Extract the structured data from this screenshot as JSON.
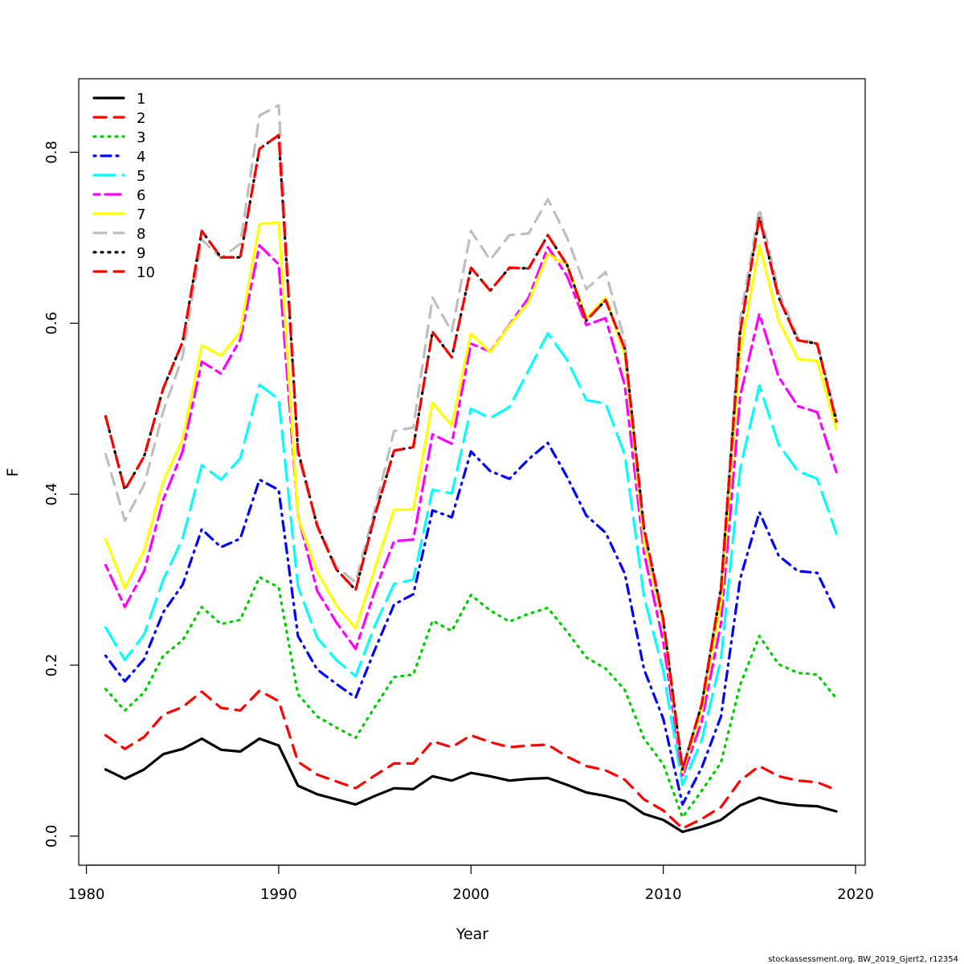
{
  "chart_data": {
    "type": "line",
    "xlabel": "Year",
    "ylabel": "F",
    "xlim": [
      1979.6,
      2020.5
    ],
    "ylim": [
      -0.034,
      0.886
    ],
    "xticks": [
      1980,
      1990,
      2000,
      2010,
      2020
    ],
    "yticks": [
      0.0,
      0.2,
      0.4,
      0.6,
      0.8
    ],
    "xtick_labels": [
      "1980",
      "1990",
      "2000",
      "2010",
      "2020"
    ],
    "ytick_labels": [
      "0.0",
      "0.2",
      "0.4",
      "0.6",
      "0.8"
    ],
    "grid": false,
    "legend_position": "top-left",
    "x": [
      1981,
      1982,
      1983,
      1984,
      1985,
      1986,
      1987,
      1988,
      1989,
      1990,
      1991,
      1992,
      1993,
      1994,
      1995,
      1996,
      1997,
      1998,
      1999,
      2000,
      2001,
      2002,
      2003,
      2004,
      2005,
      2006,
      2007,
      2008,
      2009,
      2010,
      2011,
      2012,
      2013,
      2014,
      2015,
      2016,
      2017,
      2018,
      2019
    ],
    "series": [
      {
        "name": "1",
        "color": "#000000",
        "dash": "solid",
        "values": [
          0.078,
          0.067,
          0.078,
          0.096,
          0.102,
          0.114,
          0.101,
          0.099,
          0.114,
          0.106,
          0.059,
          0.049,
          0.043,
          0.037,
          0.047,
          0.056,
          0.055,
          0.07,
          0.065,
          0.074,
          0.07,
          0.065,
          0.067,
          0.068,
          0.06,
          0.051,
          0.047,
          0.041,
          0.026,
          0.019,
          0.005,
          0.011,
          0.019,
          0.036,
          0.045,
          0.039,
          0.036,
          0.035,
          0.029
        ]
      },
      {
        "name": "2",
        "color": "#ff0000",
        "dash": "dashed",
        "values": [
          0.118,
          0.102,
          0.116,
          0.142,
          0.151,
          0.169,
          0.15,
          0.147,
          0.17,
          0.158,
          0.087,
          0.072,
          0.064,
          0.056,
          0.071,
          0.085,
          0.085,
          0.111,
          0.104,
          0.118,
          0.11,
          0.104,
          0.106,
          0.107,
          0.093,
          0.082,
          0.077,
          0.066,
          0.043,
          0.03,
          0.009,
          0.02,
          0.034,
          0.065,
          0.082,
          0.07,
          0.065,
          0.063,
          0.054
        ]
      },
      {
        "name": "3",
        "color": "#00cd00",
        "dash": "dotted",
        "values": [
          0.172,
          0.147,
          0.168,
          0.211,
          0.229,
          0.268,
          0.248,
          0.253,
          0.303,
          0.291,
          0.166,
          0.14,
          0.127,
          0.115,
          0.151,
          0.186,
          0.189,
          0.252,
          0.24,
          0.282,
          0.264,
          0.251,
          0.26,
          0.267,
          0.239,
          0.209,
          0.196,
          0.171,
          0.114,
          0.084,
          0.022,
          0.053,
          0.086,
          0.177,
          0.234,
          0.201,
          0.191,
          0.189,
          0.161
        ]
      },
      {
        "name": "4",
        "color": "#0000ff",
        "dash": "dotdash",
        "values": [
          0.211,
          0.181,
          0.207,
          0.262,
          0.294,
          0.359,
          0.338,
          0.348,
          0.417,
          0.405,
          0.234,
          0.195,
          0.178,
          0.162,
          0.218,
          0.271,
          0.283,
          0.381,
          0.373,
          0.45,
          0.427,
          0.418,
          0.441,
          0.46,
          0.42,
          0.375,
          0.355,
          0.307,
          0.195,
          0.137,
          0.037,
          0.08,
          0.14,
          0.301,
          0.379,
          0.328,
          0.31,
          0.308,
          0.262
        ]
      },
      {
        "name": "5",
        "color": "#00ffff",
        "dash": "longdash",
        "values": [
          0.244,
          0.206,
          0.236,
          0.3,
          0.348,
          0.434,
          0.417,
          0.442,
          0.528,
          0.511,
          0.292,
          0.232,
          0.206,
          0.187,
          0.246,
          0.295,
          0.3,
          0.405,
          0.401,
          0.5,
          0.489,
          0.502,
          0.545,
          0.588,
          0.557,
          0.51,
          0.506,
          0.446,
          0.28,
          0.193,
          0.06,
          0.112,
          0.207,
          0.43,
          0.527,
          0.458,
          0.427,
          0.418,
          0.354
        ]
      },
      {
        "name": "6",
        "color": "#ff00ff",
        "dash": "twodash",
        "values": [
          0.317,
          0.268,
          0.31,
          0.394,
          0.45,
          0.555,
          0.541,
          0.581,
          0.691,
          0.669,
          0.375,
          0.287,
          0.25,
          0.219,
          0.287,
          0.345,
          0.347,
          0.47,
          0.459,
          0.576,
          0.567,
          0.598,
          0.63,
          0.689,
          0.655,
          0.598,
          0.606,
          0.527,
          0.331,
          0.227,
          0.07,
          0.134,
          0.249,
          0.515,
          0.611,
          0.537,
          0.503,
          0.496,
          0.426
        ]
      },
      {
        "name": "7",
        "color": "#ffff00",
        "dash": "solid",
        "values": [
          0.347,
          0.29,
          0.334,
          0.415,
          0.464,
          0.574,
          0.562,
          0.59,
          0.716,
          0.718,
          0.373,
          0.309,
          0.27,
          0.243,
          0.313,
          0.382,
          0.382,
          0.507,
          0.48,
          0.588,
          0.566,
          0.597,
          0.625,
          0.681,
          0.668,
          0.606,
          0.63,
          0.562,
          0.344,
          0.247,
          0.075,
          0.147,
          0.273,
          0.566,
          0.691,
          0.603,
          0.558,
          0.556,
          0.476
        ]
      },
      {
        "name": "8",
        "color": "#bebebe",
        "dash": "dashed",
        "values": [
          0.447,
          0.369,
          0.411,
          0.497,
          0.561,
          0.698,
          0.676,
          0.693,
          0.843,
          0.855,
          0.445,
          0.365,
          0.315,
          0.297,
          0.382,
          0.474,
          0.478,
          0.63,
          0.59,
          0.708,
          0.674,
          0.703,
          0.705,
          0.745,
          0.7,
          0.64,
          0.66,
          0.579,
          0.355,
          0.25,
          0.078,
          0.154,
          0.293,
          0.605,
          0.734,
          0.637,
          0.583,
          0.576,
          0.491
        ]
      },
      {
        "name": "9",
        "color": "#000000",
        "dash": "dotted",
        "values": [
          0.491,
          0.405,
          0.444,
          0.524,
          0.578,
          0.708,
          0.677,
          0.677,
          0.804,
          0.82,
          0.451,
          0.363,
          0.312,
          0.288,
          0.375,
          0.451,
          0.455,
          0.59,
          0.56,
          0.665,
          0.638,
          0.665,
          0.664,
          0.703,
          0.668,
          0.603,
          0.627,
          0.57,
          0.36,
          0.253,
          0.078,
          0.154,
          0.289,
          0.59,
          0.724,
          0.63,
          0.58,
          0.576,
          0.485
        ]
      },
      {
        "name": "10",
        "color": "#ff0000",
        "dash": "dashed",
        "values": [
          0.491,
          0.405,
          0.444,
          0.524,
          0.578,
          0.708,
          0.677,
          0.677,
          0.804,
          0.82,
          0.451,
          0.363,
          0.312,
          0.288,
          0.375,
          0.451,
          0.455,
          0.59,
          0.56,
          0.665,
          0.638,
          0.665,
          0.664,
          0.703,
          0.668,
          0.603,
          0.627,
          0.57,
          0.36,
          0.253,
          0.078,
          0.154,
          0.289,
          0.59,
          0.724,
          0.63,
          0.58,
          0.576,
          0.485
        ]
      }
    ]
  },
  "credit": "stockassessment.org, BW_2019_Gjert2, r12354"
}
